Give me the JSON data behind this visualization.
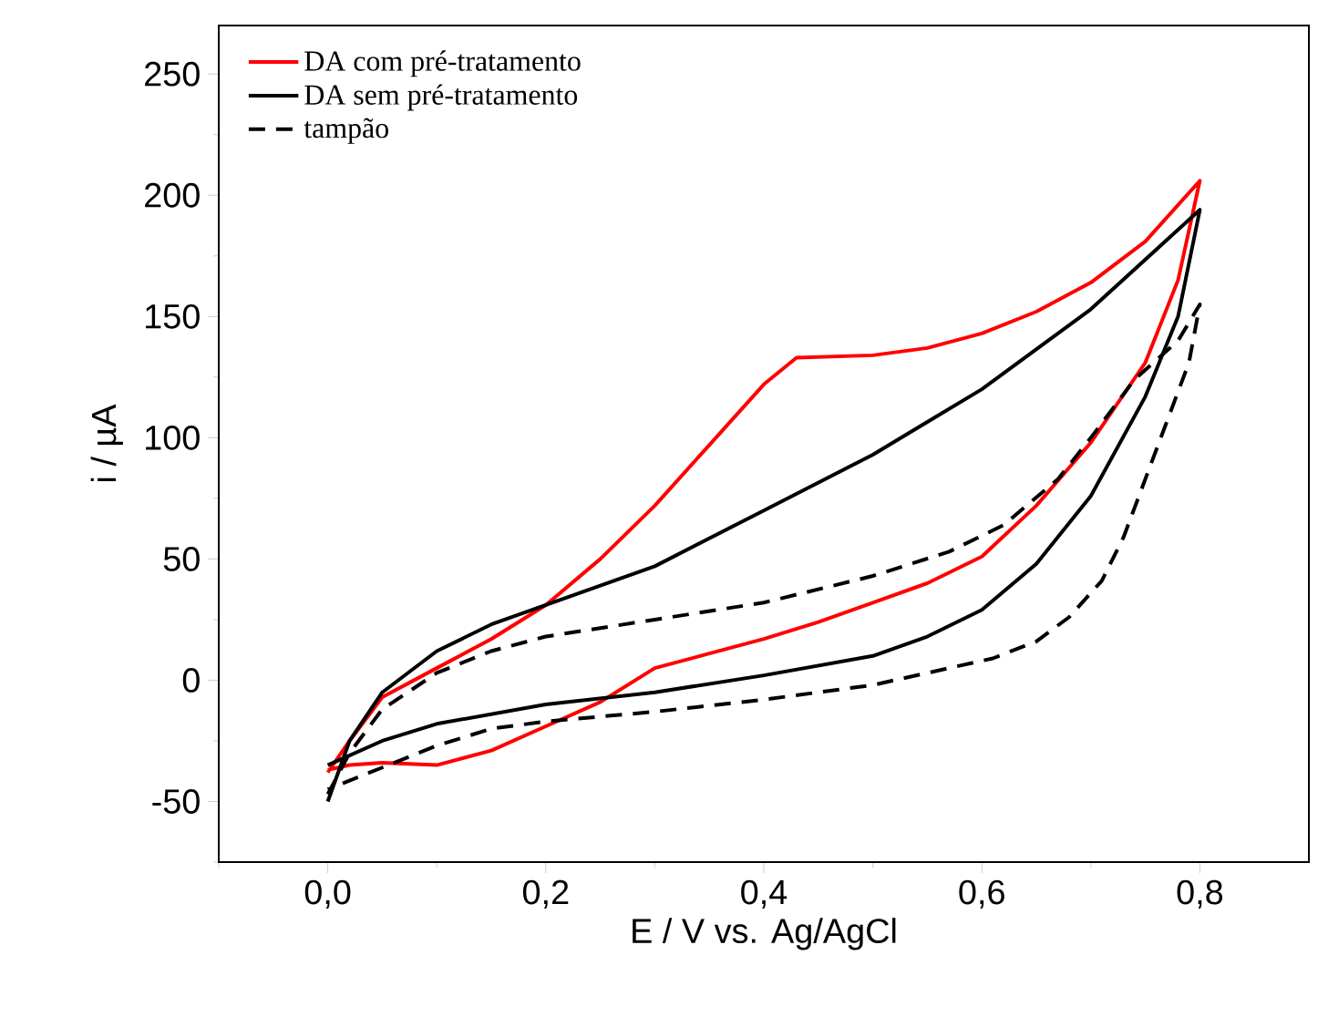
{
  "chart_data": {
    "type": "line",
    "xlabel": "E / V vs. Ag/AgCl",
    "ylabel": "i / µA",
    "xlim": [
      -0.1,
      0.9
    ],
    "ylim": [
      -75,
      270
    ],
    "xticks": [
      {
        "value": -0.1,
        "label": null
      },
      {
        "value": 0,
        "label": "0,0"
      },
      {
        "value": 0.1,
        "label": null
      },
      {
        "value": 0.2,
        "label": "0,2"
      },
      {
        "value": 0.3,
        "label": null
      },
      {
        "value": 0.4,
        "label": "0,4"
      },
      {
        "value": 0.5,
        "label": null
      },
      {
        "value": 0.6,
        "label": "0,6"
      },
      {
        "value": 0.7,
        "label": null
      },
      {
        "value": 0.8,
        "label": "0,8"
      }
    ],
    "yticks": [
      {
        "value": -75,
        "label": null
      },
      {
        "value": -50,
        "label": "-50"
      },
      {
        "value": -25,
        "label": null
      },
      0,
      {
        "value": 25,
        "label": null
      },
      50,
      {
        "value": 75,
        "label": null
      },
      100,
      {
        "value": 125,
        "label": null
      },
      150,
      {
        "value": 175,
        "label": null
      },
      200,
      {
        "value": 225,
        "label": null
      },
      250
    ],
    "legend": "top left",
    "grid": false,
    "marker": "none",
    "series": [
      {
        "name": "DA com pré-tratamento",
        "color": "#ff0000",
        "line_style": "solid",
        "x": [
          0.0,
          0.02,
          0.05,
          0.1,
          0.15,
          0.2,
          0.25,
          0.3,
          0.35,
          0.4,
          0.43,
          0.5,
          0.55,
          0.6,
          0.65,
          0.7,
          0.75,
          0.8,
          0.78,
          0.75,
          0.7,
          0.65,
          0.6,
          0.55,
          0.5,
          0.45,
          0.4,
          0.35,
          0.3,
          0.25,
          0.2,
          0.15,
          0.1,
          0.05,
          0.02,
          0.0
        ],
        "values": [
          -38,
          -25,
          -7,
          5,
          17,
          31,
          50,
          72,
          97,
          122,
          133,
          134,
          137,
          143,
          152,
          164,
          181,
          206,
          165,
          131,
          98,
          72,
          51,
          40,
          32,
          24,
          17,
          11,
          5,
          -9,
          -19,
          -29,
          -35,
          -34,
          -35,
          -37
        ]
      },
      {
        "name": "DA sem pré-tratamento",
        "color": "#000000",
        "line_style": "solid",
        "x": [
          0.0,
          0.02,
          0.05,
          0.1,
          0.15,
          0.2,
          0.3,
          0.4,
          0.5,
          0.6,
          0.7,
          0.8,
          0.78,
          0.75,
          0.7,
          0.65,
          0.6,
          0.55,
          0.5,
          0.4,
          0.3,
          0.2,
          0.1,
          0.05,
          0.0
        ],
        "values": [
          -50,
          -25,
          -5,
          12,
          23,
          31,
          47,
          70,
          93,
          120,
          153,
          194,
          150,
          117,
          76,
          48,
          29,
          18,
          10,
          2,
          -5,
          -10,
          -18,
          -25,
          -35
        ]
      },
      {
        "name": "tampão",
        "color": "#000000",
        "line_style": "dashed",
        "x": [
          0.0,
          0.02,
          0.05,
          0.1,
          0.15,
          0.2,
          0.3,
          0.4,
          0.5,
          0.57,
          0.62,
          0.67,
          0.7,
          0.74,
          0.78,
          0.8,
          0.79,
          0.77,
          0.75,
          0.73,
          0.71,
          0.68,
          0.65,
          0.61,
          0.5,
          0.4,
          0.3,
          0.2,
          0.15,
          0.1,
          0.05,
          0.0
        ],
        "values": [
          -47,
          -30,
          -12,
          3,
          12,
          18,
          25,
          32,
          43,
          53,
          64,
          83,
          100,
          124,
          140,
          155,
          131,
          107,
          83,
          59,
          41,
          26,
          16,
          9,
          -2,
          -8,
          -13,
          -17,
          -20,
          -27,
          -36,
          -45
        ]
      }
    ]
  }
}
